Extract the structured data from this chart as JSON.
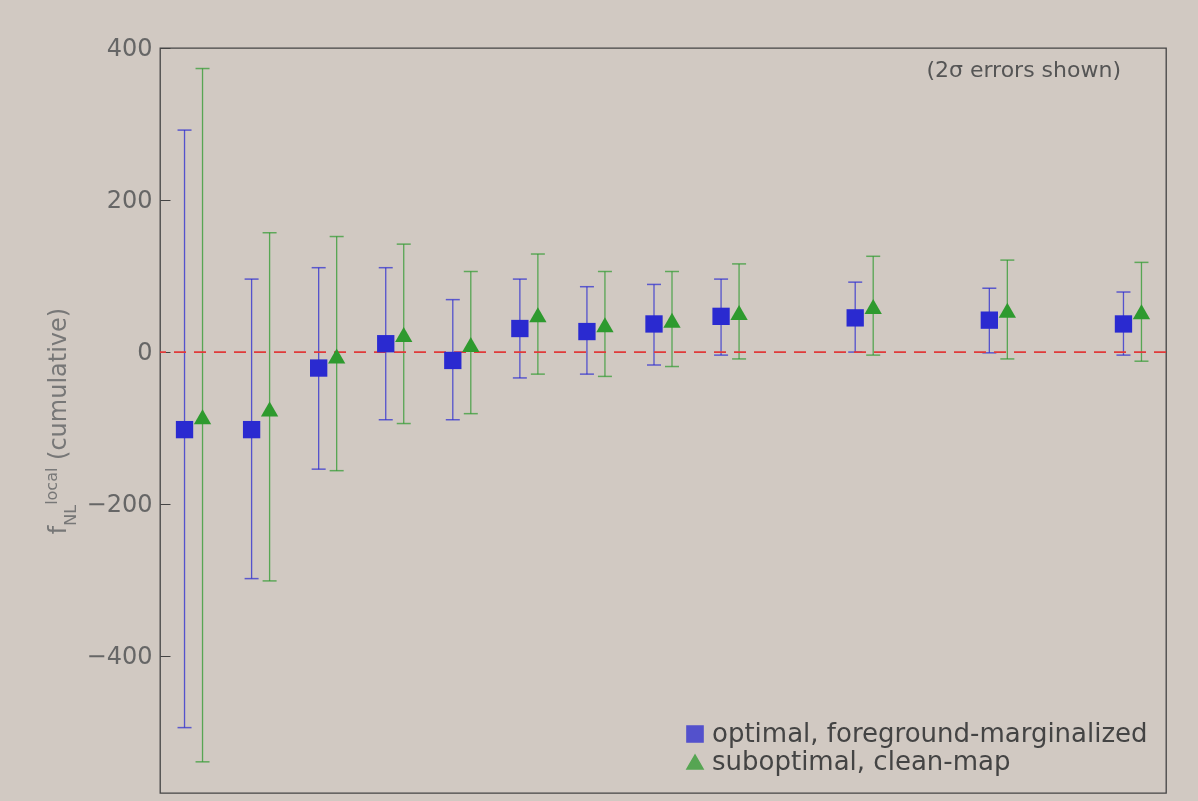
{
  "chart_data": {
    "type": "scatter",
    "ylabel": "f$_{NL}$$^{local}$ (cumulative)",
    "annotations": [
      "(2σ errors shown)"
    ],
    "categories": [
      null,
      null,
      null,
      null,
      null,
      null,
      null,
      null,
      null,
      null,
      null,
      null,
      null,
      null,
      null
    ],
    "series": [
      {
        "name": "optimal, foreground-marginalized",
        "color": "#2a2ad0",
        "marker": "square",
        "values": [
          -102,
          -102,
          -21,
          11,
          -11,
          31,
          27,
          37,
          47,
          null,
          45,
          null,
          42,
          null,
          37
        ],
        "errors": [
          [
            -494,
            292
          ],
          [
            -298,
            96
          ],
          [
            -154,
            111
          ],
          [
            -89,
            111
          ],
          [
            -89,
            69
          ],
          [
            -34,
            96
          ],
          [
            -29,
            86
          ],
          [
            -17,
            89
          ],
          [
            -4,
            96
          ],
          null,
          [
            0,
            92
          ],
          null,
          [
            -1,
            84
          ],
          null,
          [
            -4,
            79
          ]
        ]
      },
      {
        "name": "suboptimal, clean-map",
        "color": "#2e9a2e",
        "marker": "triangle",
        "values": [
          -85,
          -75,
          -5,
          23,
          10,
          49,
          36,
          42,
          52,
          null,
          60,
          null,
          55,
          null,
          53
        ],
        "errors": [
          [
            -539,
            373
          ],
          [
            -301,
            157
          ],
          [
            -156,
            152
          ],
          [
            -94,
            142
          ],
          [
            -81,
            106
          ],
          [
            -29,
            129
          ],
          [
            -32,
            106
          ],
          [
            -19,
            106
          ],
          [
            -9,
            116
          ],
          null,
          [
            -4,
            126
          ],
          null,
          [
            -9,
            121
          ],
          null,
          [
            -12,
            118
          ]
        ]
      }
    ],
    "ylim": [
      -580,
      400
    ],
    "yticks": [
      -400,
      -200,
      0,
      200,
      400
    ],
    "ref_lines": [
      {
        "axis": "y",
        "value": 0,
        "color": "#e03a3a",
        "line_style": "dashed"
      }
    ],
    "legend": "bottom right",
    "tick_labels": "y",
    "grid": false
  }
}
